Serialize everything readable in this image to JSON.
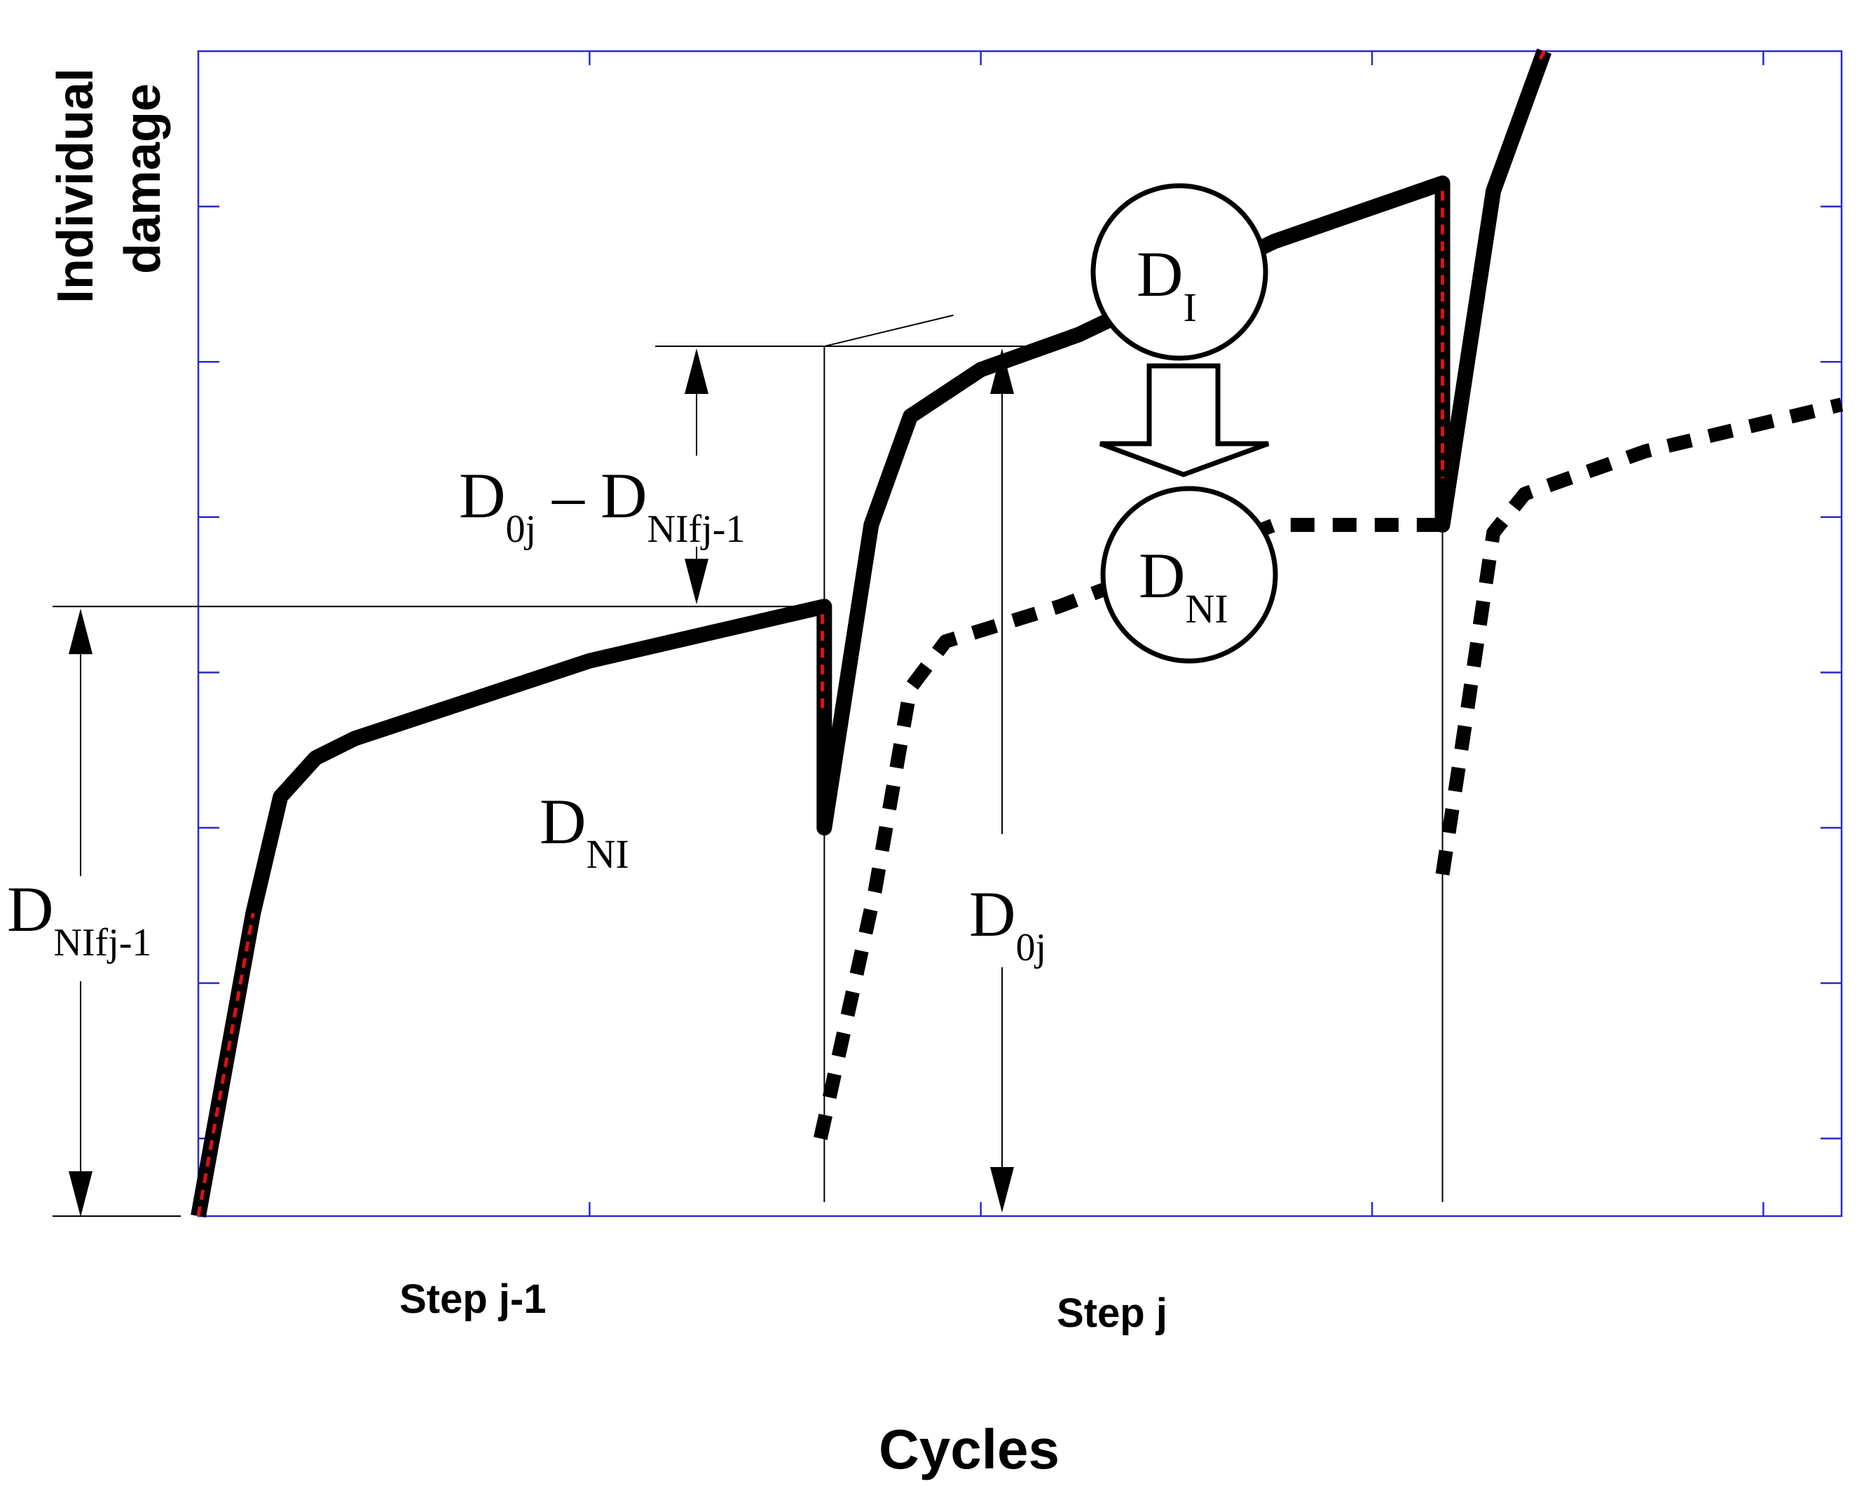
{
  "chart_data": {
    "type": "line",
    "title": "",
    "xlabel": "Cycles",
    "ylabel_lines": [
      "Individual",
      "damage"
    ],
    "xlim": [
      0,
      42
    ],
    "ylim": [
      0,
      15
    ],
    "grid": false,
    "x_step_labels": [
      "Step j-1",
      "Step j"
    ],
    "series": [
      {
        "style": "solid",
        "color": "#000000",
        "points": [
          [
            0,
            0
          ],
          [
            1.4,
            3.9
          ],
          [
            2.1,
            5.4
          ],
          [
            3,
            5.9
          ],
          [
            4,
            6.15
          ],
          [
            10,
            7.15
          ],
          [
            16,
            7.85
          ],
          [
            16,
            5.0
          ],
          [
            17.2,
            8.9
          ],
          [
            18.2,
            10.3
          ],
          [
            20,
            10.9
          ],
          [
            22.5,
            11.35
          ],
          [
            27.5,
            12.55
          ],
          [
            31.8,
            13.3
          ],
          [
            31.8,
            8.9
          ],
          [
            33.1,
            13.2
          ],
          [
            34.4,
            15.0
          ]
        ]
      },
      {
        "style": "dotted",
        "color": "#000000",
        "points": [
          [
            15.9,
            1.0
          ],
          [
            17.3,
            4.2
          ],
          [
            18.2,
            6.8
          ],
          [
            19.1,
            7.4
          ],
          [
            22,
            7.85
          ],
          [
            27.5,
            8.9
          ],
          [
            31.8,
            8.9
          ]
        ]
      },
      {
        "style": "dotted",
        "color": "#000000",
        "points": [
          [
            31.8,
            4.4
          ],
          [
            32.4,
            6.4
          ],
          [
            33.1,
            8.8
          ],
          [
            33.9,
            9.3
          ],
          [
            37,
            9.85
          ],
          [
            42,
            10.45
          ]
        ]
      }
    ],
    "overlay_marks": [
      {
        "color": "#dd1111",
        "points": [
          [
            0,
            0
          ],
          [
            1.4,
            3.9
          ]
        ]
      },
      {
        "color": "#dd1111",
        "points": [
          [
            15.95,
            7.75
          ],
          [
            15.95,
            6.5
          ]
        ]
      },
      {
        "color": "#dd1111",
        "points": [
          [
            31.8,
            13.2
          ],
          [
            31.8,
            9.5
          ]
        ]
      },
      {
        "color": "#dd1111",
        "points": [
          [
            34.3,
            14.9
          ],
          [
            34.4,
            15.0
          ]
        ]
      }
    ],
    "guide_lines": {
      "dnifj_level": 7.85,
      "d0j_level": 11.2,
      "step_dividers_x": [
        16,
        31.8
      ]
    },
    "annotations": {
      "dnifj1": {
        "main": "D",
        "sub": "NIfj-1"
      },
      "d0j_minus": {
        "main1": "D",
        "sub1": "0j",
        "op": " – ",
        "main2": "D",
        "sub2": "NIfj-1"
      },
      "dni_label": {
        "main": "D",
        "sub": "NI"
      },
      "d0j": {
        "main": "D",
        "sub": "0j"
      },
      "circle_di": {
        "main": "D",
        "sub": "I"
      },
      "circle_dni": {
        "main": "D",
        "sub": "NI"
      }
    }
  }
}
